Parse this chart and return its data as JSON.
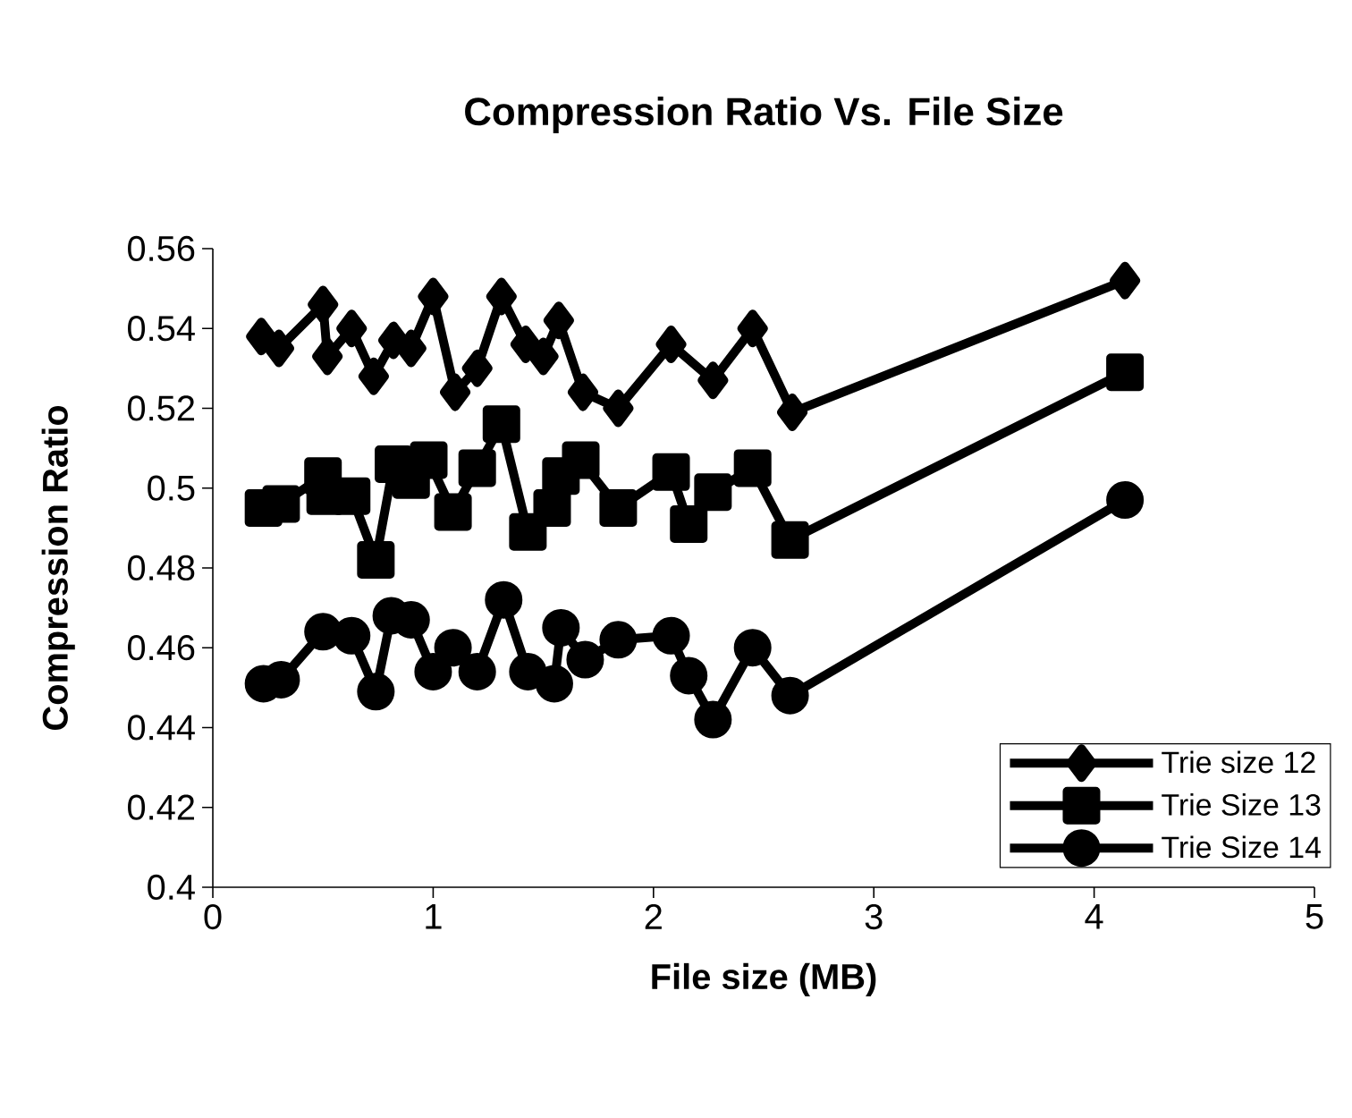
{
  "chart_data": {
    "type": "line",
    "title": "Compression Ratio Vs. File Size",
    "xlabel": "File size (MB)",
    "ylabel": "Compression Ratio",
    "xlim": [
      0,
      5
    ],
    "xticks": [
      0,
      1,
      2,
      3,
      4,
      5
    ],
    "ylim": [
      0.4,
      0.56
    ],
    "yticks": [
      0.4,
      0.42,
      0.44,
      0.46,
      0.48,
      0.5,
      0.52,
      0.54,
      0.56
    ],
    "grid": false,
    "legend": "bottom right",
    "line_style": "solid",
    "series": [
      {
        "name": "Trie size 12",
        "color": "#000000",
        "marker": "diamond",
        "x": [
          0.22,
          0.3,
          0.5,
          0.52,
          0.63,
          0.73,
          0.82,
          0.9,
          1.0,
          1.1,
          1.2,
          1.31,
          1.42,
          1.5,
          1.57,
          1.68,
          1.84,
          2.08,
          2.27,
          2.45,
          2.63,
          4.14
        ],
        "values": [
          0.538,
          0.535,
          0.546,
          0.533,
          0.54,
          0.528,
          0.537,
          0.535,
          0.548,
          0.524,
          0.53,
          0.548,
          0.536,
          0.533,
          0.542,
          0.524,
          0.52,
          0.536,
          0.527,
          0.54,
          0.519,
          0.552
        ]
      },
      {
        "name": "Trie Size 13",
        "color": "#000000",
        "marker": "square",
        "x": [
          0.23,
          0.31,
          0.5,
          0.51,
          0.63,
          0.74,
          0.82,
          0.9,
          0.98,
          1.09,
          1.2,
          1.31,
          1.43,
          1.54,
          1.58,
          1.67,
          1.84,
          2.08,
          2.16,
          2.27,
          2.45,
          2.62,
          4.14
        ],
        "values": [
          0.495,
          0.496,
          0.503,
          0.498,
          0.498,
          0.482,
          0.506,
          0.502,
          0.507,
          0.494,
          0.505,
          0.516,
          0.489,
          0.495,
          0.503,
          0.507,
          0.495,
          0.504,
          0.491,
          0.499,
          0.505,
          0.487,
          0.529
        ]
      },
      {
        "name": "Trie Size 14",
        "color": "#000000",
        "marker": "circle",
        "x": [
          0.23,
          0.31,
          0.5,
          0.63,
          0.74,
          0.81,
          0.9,
          1.0,
          1.09,
          1.2,
          1.32,
          1.43,
          1.55,
          1.58,
          1.69,
          1.84,
          2.08,
          2.16,
          2.27,
          2.45,
          2.62,
          4.14
        ],
        "values": [
          0.451,
          0.452,
          0.464,
          0.463,
          0.449,
          0.468,
          0.467,
          0.454,
          0.46,
          0.454,
          0.472,
          0.454,
          0.451,
          0.465,
          0.457,
          0.462,
          0.463,
          0.453,
          0.442,
          0.46,
          0.448,
          0.497
        ]
      }
    ]
  }
}
